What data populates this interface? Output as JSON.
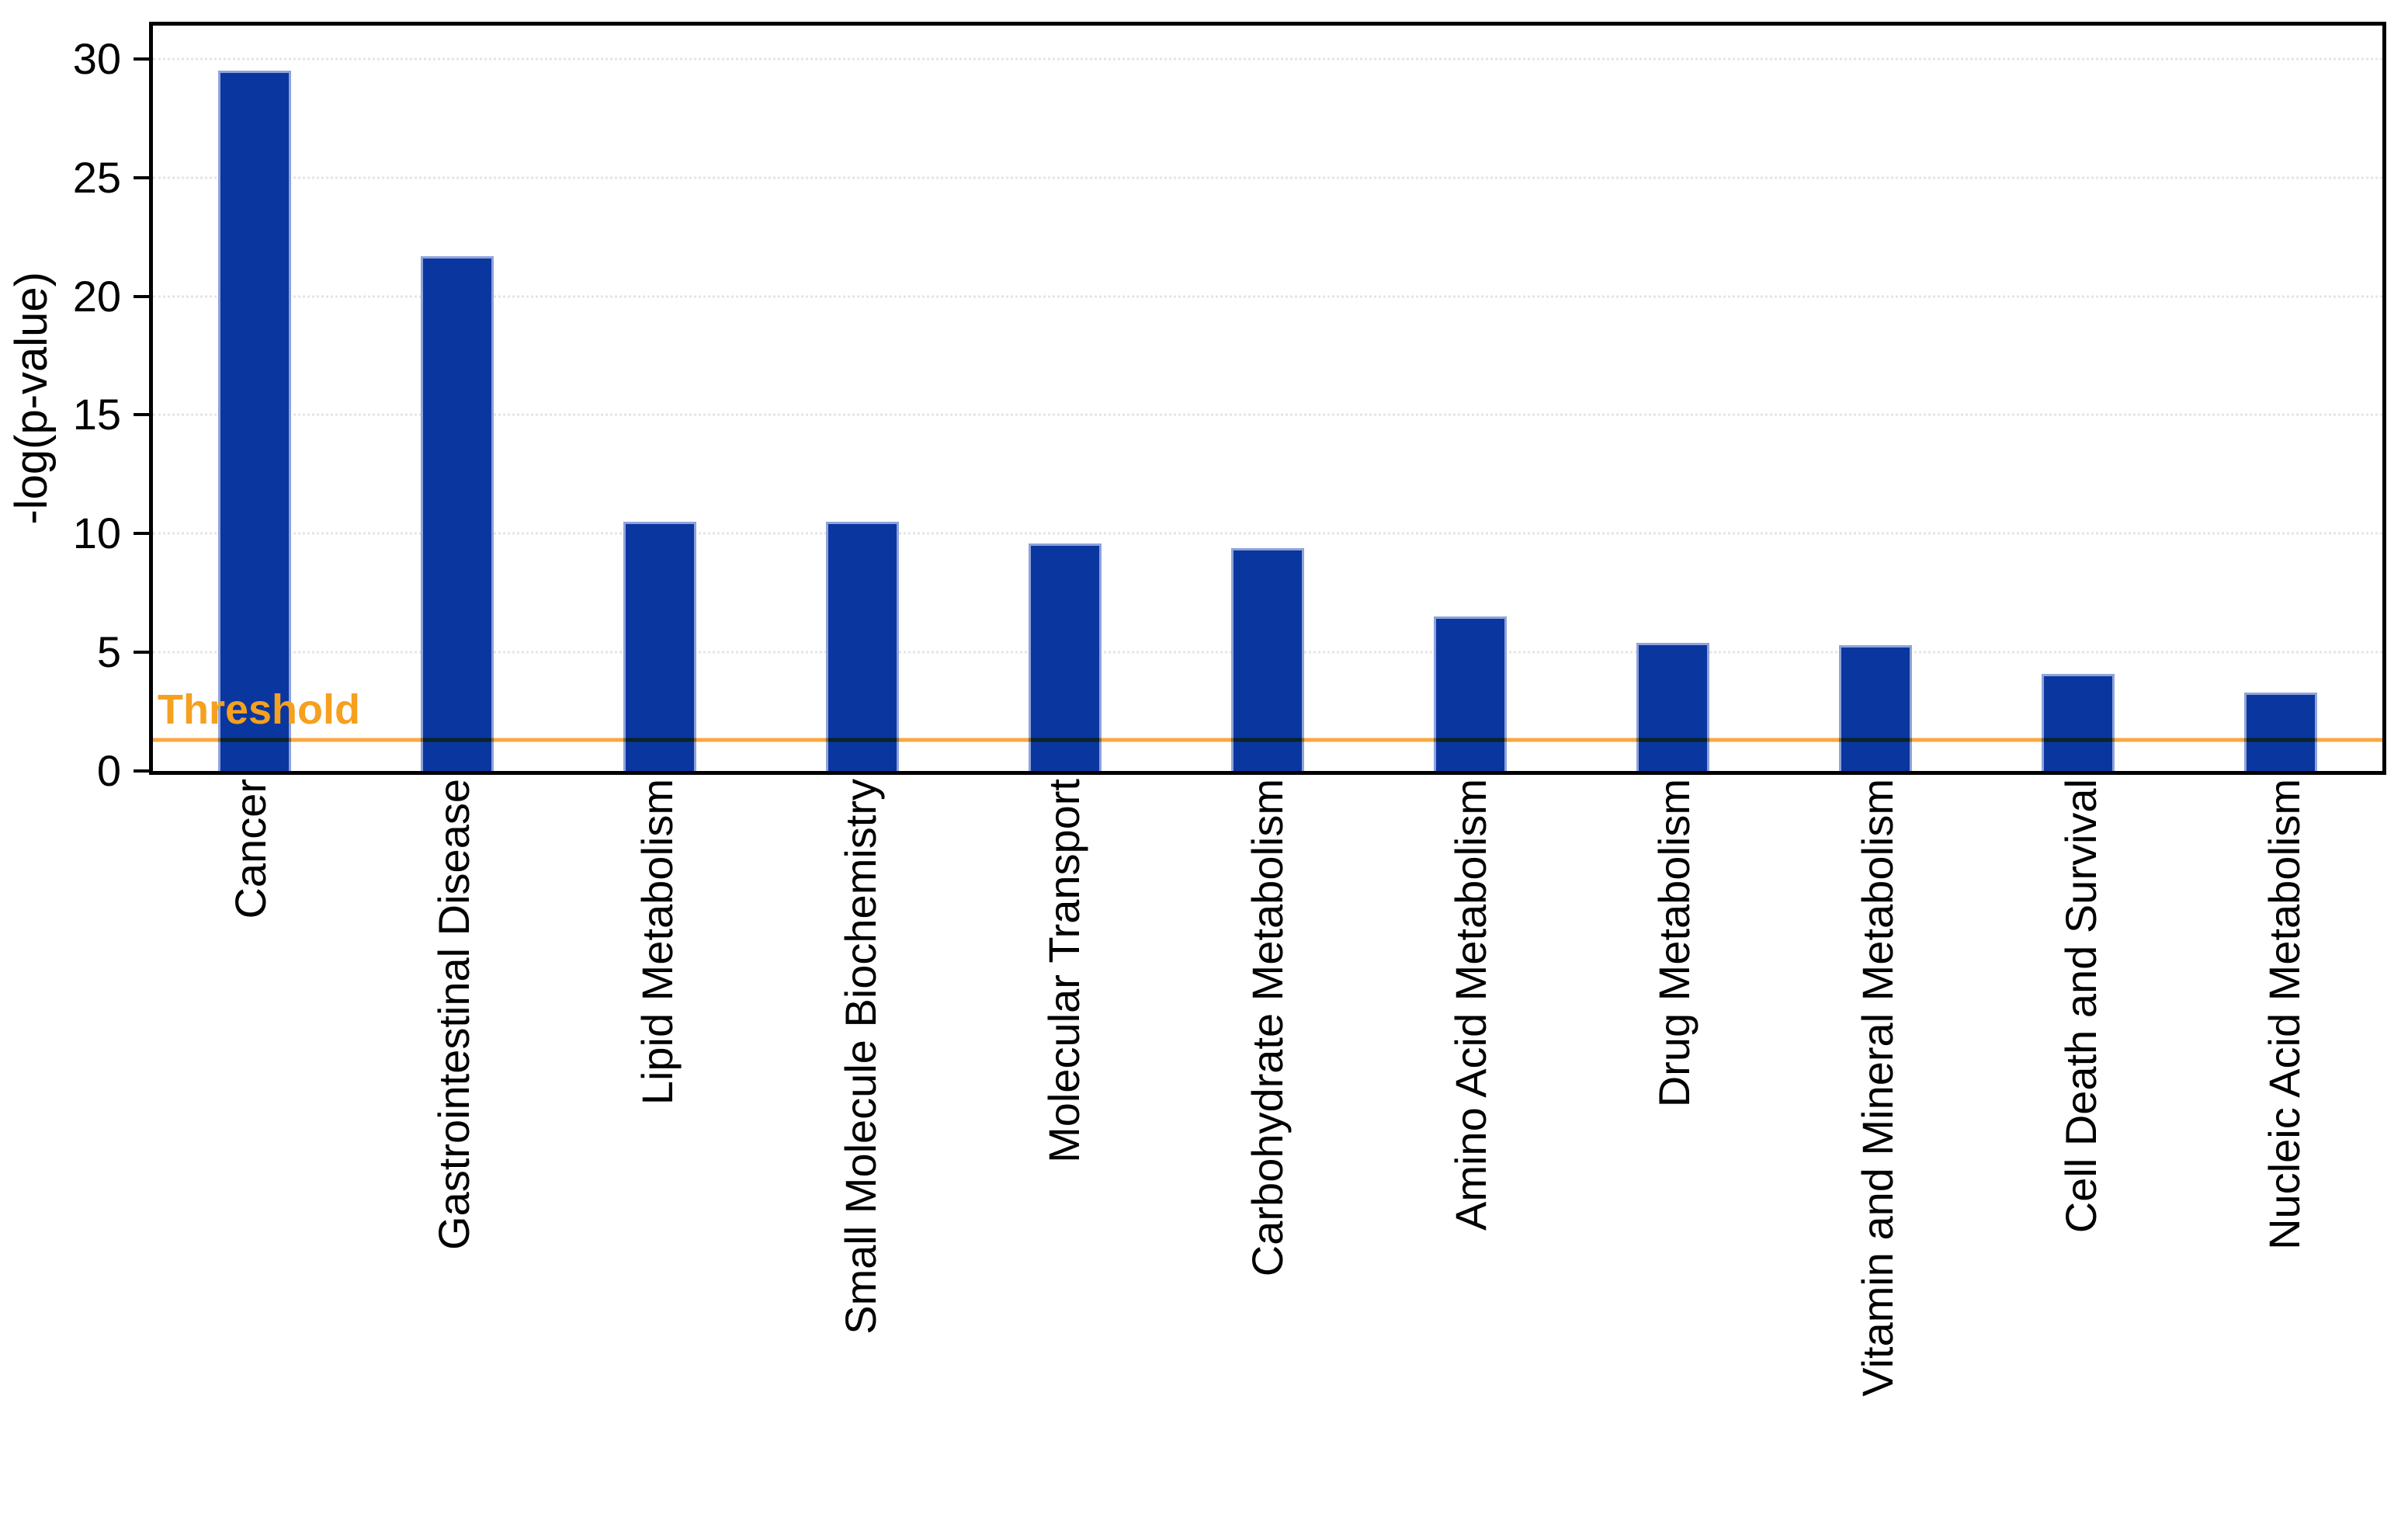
{
  "chart_data": {
    "type": "bar",
    "title": "",
    "xlabel": "",
    "ylabel": "-log(p-value)",
    "categories": [
      "Cancer",
      "Gastrointestinal Disease",
      "Lipid Metabolism",
      "Small Molecule Biochemistry",
      "Molecular Transport",
      "Carbohydrate Metabolism",
      "Amino Acid Metabolism",
      "Drug Metabolism",
      "Vitamin and Mineral Metabolism",
      "Cell Death and Survival",
      "Nucleic Acid Metabolism"
    ],
    "values": [
      29.5,
      21.7,
      10.5,
      10.5,
      9.6,
      9.4,
      6.5,
      5.4,
      5.3,
      4.1,
      3.3
    ],
    "yticks": [
      0,
      5,
      10,
      15,
      20,
      25,
      30
    ],
    "ylim": [
      0,
      31.4
    ],
    "grid": "horizontal-dotted",
    "legend": "none",
    "threshold": {
      "label": "Threshold",
      "value": 1.3
    },
    "colors": {
      "bar": "#0a36a0",
      "bar_edge": "#8fa3d9",
      "threshold_line": "#f9a840",
      "threshold_text": "#f5a01f",
      "grid": "#e4e4e4",
      "axis_frame": "#000000",
      "text": "#000000",
      "background": "#ffffff"
    }
  }
}
